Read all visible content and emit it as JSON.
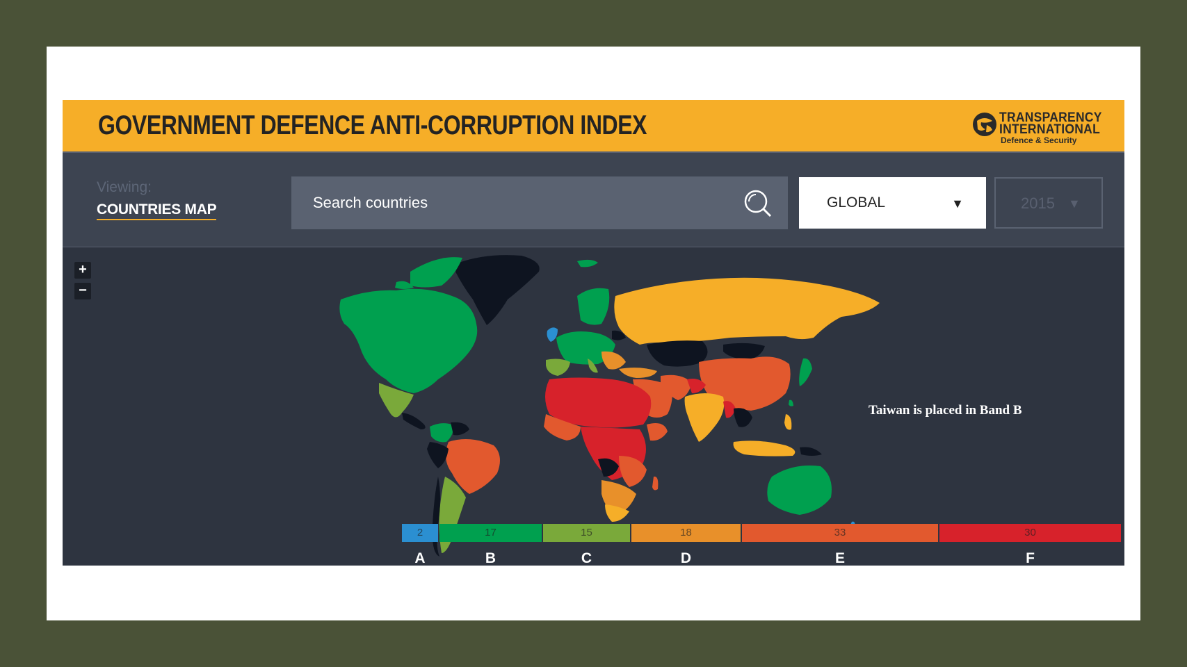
{
  "header": {
    "title": "GOVERNMENT DEFENCE ANTI-CORRUPTION INDEX",
    "logo_line1": "TRANSPARENCY",
    "logo_line2": "INTERNATIONAL",
    "logo_line3": "Defence & Security"
  },
  "controls": {
    "viewing_label": "Viewing:",
    "viewing_value": "COUNTRIES MAP",
    "search_placeholder": "Search countries",
    "region_value": "GLOBAL",
    "year_value": "2015"
  },
  "map": {
    "zoom_in": "+",
    "zoom_out": "−",
    "annotation": "Taiwan is placed in Band B"
  },
  "legend": {
    "bands": [
      {
        "letter": "A",
        "count": "2",
        "color": "#2b8fd1"
      },
      {
        "letter": "B",
        "count": "17",
        "color": "#00a04f"
      },
      {
        "letter": "C",
        "count": "15",
        "color": "#7aa93a"
      },
      {
        "letter": "D",
        "count": "18",
        "color": "#e8902a"
      },
      {
        "letter": "E",
        "count": "33",
        "color": "#e2592e"
      },
      {
        "letter": "F",
        "count": "30",
        "color": "#d7222b"
      }
    ]
  },
  "colors": {
    "header": "#f6ae28",
    "panel": "#2e3440",
    "no_data": "#0e1420"
  }
}
